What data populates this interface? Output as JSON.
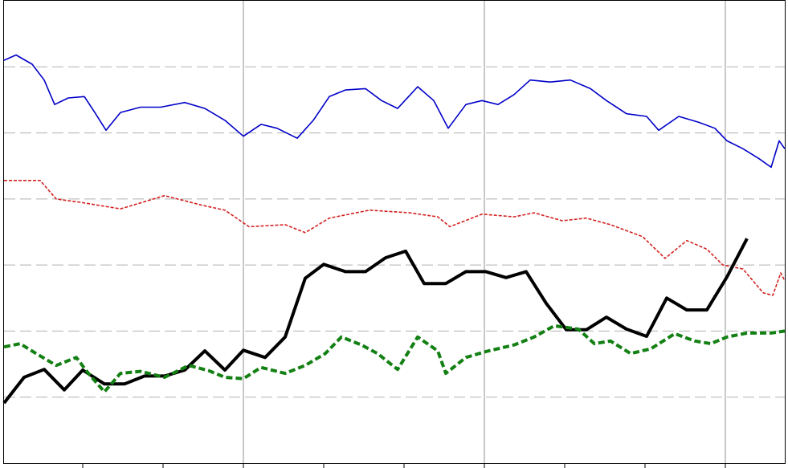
{
  "chart_data": {
    "type": "line",
    "xlim": [
      0.02,
      9.74
    ],
    "xticks": [
      1,
      2,
      3,
      4,
      5,
      6,
      7,
      8,
      9
    ],
    "xgrid": [
      3,
      6,
      9
    ],
    "ylim": [
      0,
      7
    ],
    "yticks": [
      1,
      2,
      3,
      4,
      5,
      6
    ],
    "grid": true,
    "series": [
      {
        "color": "#0000c8",
        "width": 1.6,
        "dash": "none",
        "x": [
          0.02,
          0.17,
          0.37,
          0.52,
          0.65,
          0.82,
          1.02,
          1.15,
          1.29,
          1.47,
          1.72,
          1.97,
          2.27,
          2.52,
          2.77,
          3.0,
          3.22,
          3.42,
          3.67,
          3.87,
          4.07,
          4.27,
          4.52,
          4.72,
          4.92,
          5.17,
          5.37,
          5.55,
          5.77,
          5.97,
          6.17,
          6.37,
          6.57,
          6.82,
          7.07,
          7.32,
          7.52,
          7.77,
          8.02,
          8.17,
          8.42,
          8.67,
          8.87,
          9.02,
          9.22,
          9.42,
          9.57,
          9.67,
          9.74
        ],
        "values": [
          6.1,
          6.18,
          6.04,
          5.8,
          5.43,
          5.53,
          5.55,
          5.31,
          5.04,
          5.31,
          5.39,
          5.39,
          5.46,
          5.37,
          5.19,
          4.95,
          5.13,
          5.07,
          4.92,
          5.19,
          5.55,
          5.65,
          5.67,
          5.49,
          5.37,
          5.7,
          5.49,
          5.07,
          5.43,
          5.49,
          5.43,
          5.58,
          5.8,
          5.77,
          5.8,
          5.67,
          5.49,
          5.29,
          5.25,
          5.04,
          5.25,
          5.16,
          5.07,
          4.88,
          4.76,
          4.61,
          4.48,
          4.88,
          4.76
        ]
      },
      {
        "color": "#d42020",
        "width": 1.6,
        "dash": "4,2",
        "x": [
          0.02,
          0.47,
          0.67,
          0.97,
          1.47,
          2.02,
          2.47,
          2.77,
          3.07,
          3.52,
          3.77,
          4.07,
          4.57,
          5.07,
          5.42,
          5.57,
          5.97,
          6.37,
          6.62,
          6.97,
          7.27,
          7.57,
          7.97,
          8.25,
          8.52,
          8.77,
          8.97,
          9.22,
          9.47,
          9.59,
          9.69,
          9.74
        ],
        "values": [
          4.28,
          4.28,
          4.0,
          3.95,
          3.85,
          4.05,
          3.91,
          3.83,
          3.58,
          3.61,
          3.49,
          3.71,
          3.83,
          3.79,
          3.73,
          3.58,
          3.77,
          3.73,
          3.79,
          3.67,
          3.71,
          3.61,
          3.43,
          3.1,
          3.37,
          3.24,
          3.0,
          2.94,
          2.58,
          2.54,
          2.88,
          2.76
        ]
      },
      {
        "color": "#000000",
        "width": 4,
        "dash": "none",
        "x": [
          0.02,
          0.27,
          0.52,
          0.77,
          1.0,
          1.27,
          1.52,
          1.77,
          2.02,
          2.27,
          2.52,
          2.77,
          3.0,
          3.27,
          3.52,
          3.77,
          4.0,
          4.27,
          4.52,
          4.77,
          5.02,
          5.25,
          5.52,
          5.77,
          6.02,
          6.27,
          6.52,
          6.77,
          7.02,
          7.27,
          7.52,
          7.77,
          8.02,
          8.27,
          8.52,
          8.77,
          9.02,
          9.27
        ],
        "values": [
          0.91,
          1.3,
          1.42,
          1.11,
          1.41,
          1.2,
          1.2,
          1.32,
          1.32,
          1.41,
          1.7,
          1.41,
          1.71,
          1.6,
          1.91,
          2.8,
          3.01,
          2.9,
          2.9,
          3.11,
          3.21,
          2.72,
          2.72,
          2.9,
          2.9,
          2.81,
          2.9,
          2.42,
          2.02,
          2.02,
          2.21,
          2.03,
          1.92,
          2.5,
          2.32,
          2.32,
          2.82,
          3.4
        ]
      },
      {
        "color": "#138013",
        "width": 4,
        "dash": "8,4",
        "x": [
          0.02,
          0.22,
          0.42,
          0.67,
          0.92,
          1.07,
          1.27,
          1.47,
          1.72,
          2.02,
          2.32,
          2.57,
          2.77,
          3.0,
          3.22,
          3.52,
          3.77,
          4.02,
          4.22,
          4.47,
          4.67,
          4.92,
          5.17,
          5.42,
          5.52,
          5.77,
          6.02,
          6.37,
          6.62,
          6.87,
          7.17,
          7.37,
          7.57,
          7.82,
          8.07,
          8.37,
          8.62,
          8.82,
          9.02,
          9.27,
          9.57,
          9.74
        ],
        "values": [
          1.76,
          1.81,
          1.66,
          1.48,
          1.6,
          1.36,
          1.08,
          1.36,
          1.39,
          1.3,
          1.48,
          1.4,
          1.3,
          1.28,
          1.45,
          1.36,
          1.48,
          1.66,
          1.91,
          1.79,
          1.66,
          1.42,
          1.91,
          1.7,
          1.36,
          1.6,
          1.69,
          1.79,
          1.91,
          2.08,
          2.03,
          1.81,
          1.85,
          1.66,
          1.73,
          1.96,
          1.85,
          1.81,
          1.91,
          1.97,
          1.97,
          2.0
        ]
      }
    ]
  }
}
